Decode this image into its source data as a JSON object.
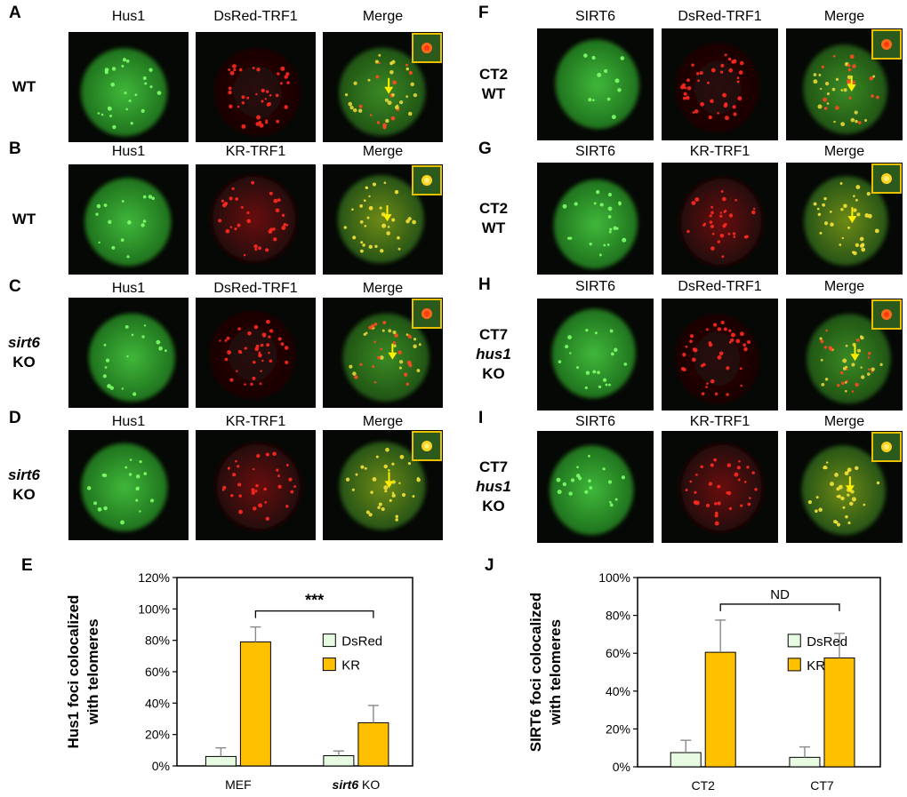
{
  "left_figure": {
    "rows": [
      {
        "letter": "A",
        "genotype": [
          "WT"
        ],
        "italic": [
          false
        ],
        "channels": [
          "Hus1",
          "DsRed-TRF1",
          "Merge"
        ],
        "reporter": "dsred"
      },
      {
        "letter": "B",
        "genotype": [
          "WT"
        ],
        "italic": [
          false
        ],
        "channels": [
          "Hus1",
          "KR-TRF1",
          "Merge"
        ],
        "reporter": "kr"
      },
      {
        "letter": "C",
        "genotype": [
          "sirt6",
          "KO"
        ],
        "italic": [
          true,
          false
        ],
        "channels": [
          "Hus1",
          "DsRed-TRF1",
          "Merge"
        ],
        "reporter": "dsred"
      },
      {
        "letter": "D",
        "genotype": [
          "sirt6",
          "KO"
        ],
        "italic": [
          true,
          false
        ],
        "channels": [
          "Hus1",
          "KR-TRF1",
          "Merge"
        ],
        "reporter": "kr"
      }
    ]
  },
  "right_figure": {
    "rows": [
      {
        "letter": "F",
        "genotype": [
          "CT2",
          "WT"
        ],
        "italic": [
          false,
          false
        ],
        "channels": [
          "SIRT6",
          "DsRed-TRF1",
          "Merge"
        ],
        "reporter": "dsred"
      },
      {
        "letter": "G",
        "genotype": [
          "CT2",
          "WT"
        ],
        "italic": [
          false,
          false
        ],
        "channels": [
          "SIRT6",
          "KR-TRF1",
          "Merge"
        ],
        "reporter": "kr"
      },
      {
        "letter": "H",
        "genotype": [
          "CT7",
          "hus1",
          "KO"
        ],
        "italic": [
          false,
          true,
          false
        ],
        "channels": [
          "SIRT6",
          "DsRed-TRF1",
          "Merge"
        ],
        "reporter": "dsred"
      },
      {
        "letter": "I",
        "genotype": [
          "CT7",
          "hus1",
          "KO"
        ],
        "italic": [
          false,
          true,
          false
        ],
        "channels": [
          "SIRT6",
          "KR-TRF1",
          "Merge"
        ],
        "reporter": "kr"
      }
    ]
  },
  "chart_data": [
    {
      "letter": "E",
      "type": "bar",
      "ylabel": [
        "Hus1 foci colocalized",
        "with telomeres"
      ],
      "categories": [
        "MEF",
        "sirt6 KO"
      ],
      "category_italic_prefix": [
        "",
        "sirt6"
      ],
      "ylim": [
        0,
        1.2
      ],
      "yticks": [
        "0%",
        "20%",
        "40%",
        "60%",
        "80%",
        "100%",
        "120%"
      ],
      "series": [
        {
          "name": "DsRed",
          "values": [
            0.06,
            0.065
          ],
          "errors": [
            0.055,
            0.03
          ],
          "color": "#e6fbe1"
        },
        {
          "name": "KR",
          "values": [
            0.79,
            0.275
          ],
          "errors": [
            0.095,
            0.11
          ],
          "color": "#ffc000"
        }
      ],
      "annotation": "***",
      "legend_position": "right",
      "grid": false
    },
    {
      "letter": "J",
      "type": "bar",
      "ylabel": [
        "SIRT6 foci colocalized",
        "with telomeres"
      ],
      "categories": [
        "CT2",
        "CT7"
      ],
      "category_italic_prefix": [
        "",
        ""
      ],
      "ylim": [
        0,
        1.0
      ],
      "yticks": [
        "0%",
        "20%",
        "40%",
        "60%",
        "80%",
        "100%"
      ],
      "series": [
        {
          "name": "DsRed",
          "values": [
            0.075,
            0.05
          ],
          "errors": [
            0.065,
            0.055
          ],
          "color": "#e6fbe1"
        },
        {
          "name": "KR",
          "values": [
            0.605,
            0.575
          ],
          "errors": [
            0.17,
            0.13
          ],
          "color": "#ffc000"
        }
      ],
      "annotation": "ND",
      "legend_position": "right",
      "grid": false
    }
  ]
}
